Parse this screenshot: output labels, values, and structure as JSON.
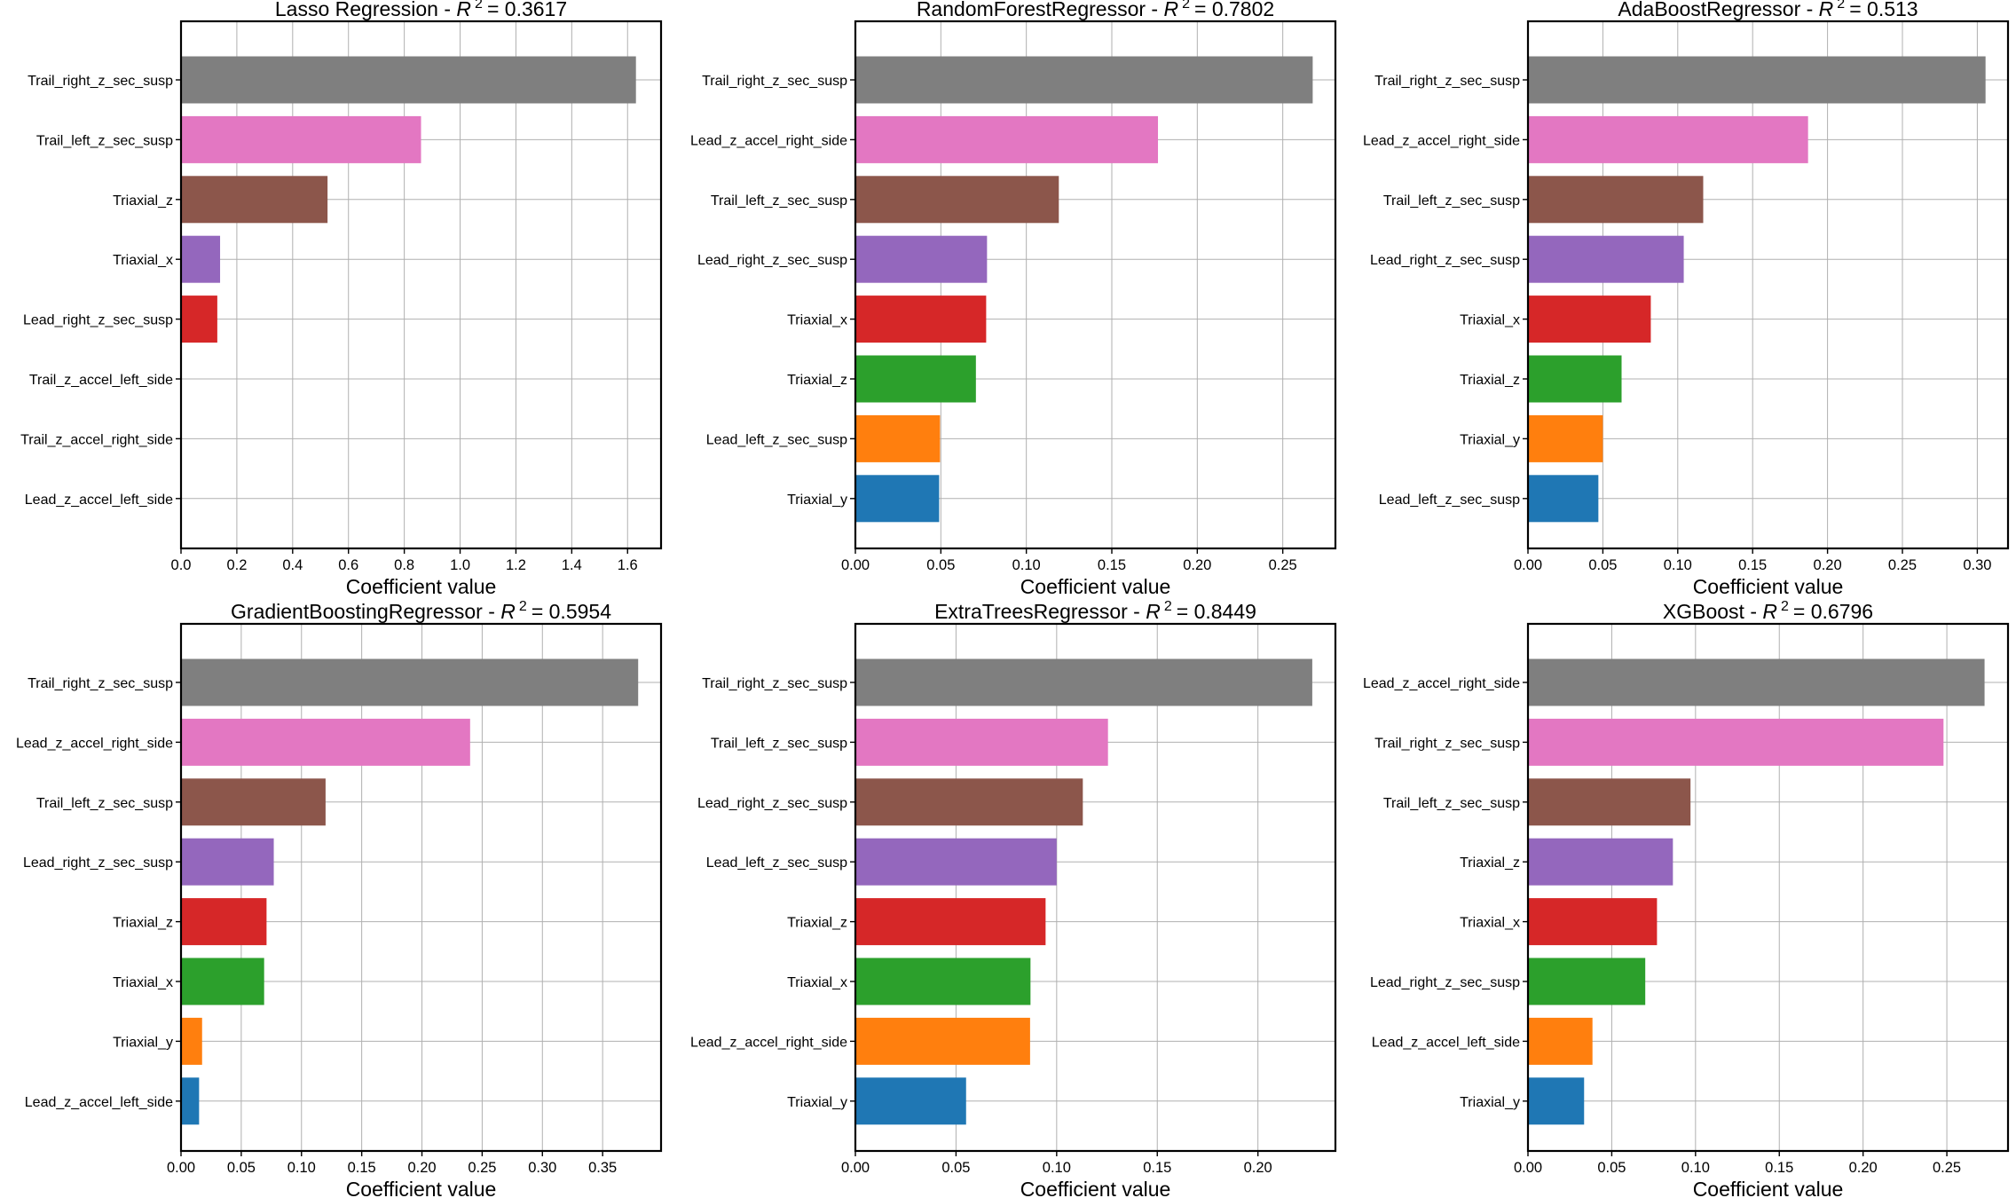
{
  "chart_data": [
    {
      "type": "bar",
      "orientation": "horizontal",
      "title_prefix": "Lasso Regression - ",
      "r2_symbol": "R",
      "r2_exponent": "2",
      "r2_value": "= 0.3617",
      "xlabel": "Coefficient value",
      "xlim": [
        0,
        1.72
      ],
      "xticks": [
        0,
        0.2,
        0.4,
        0.6,
        0.8,
        1.0,
        1.2,
        1.4,
        1.6
      ],
      "xtick_labels": [
        "0.0",
        "0.2",
        "0.4",
        "0.6",
        "0.8",
        "1.0",
        "1.2",
        "1.4",
        "1.6"
      ],
      "grid": true,
      "bars": [
        {
          "label": "Trail_right_z_sec_susp",
          "value": 1.63,
          "color": "#7f7f7f"
        },
        {
          "label": "Trail_left_z_sec_susp",
          "value": 0.86,
          "color": "#e377c2"
        },
        {
          "label": "Triaxial_z",
          "value": 0.525,
          "color": "#8c564b"
        },
        {
          "label": "Triaxial_x",
          "value": 0.14,
          "color": "#9467bd"
        },
        {
          "label": "Lead_right_z_sec_susp",
          "value": 0.13,
          "color": "#d62728"
        },
        {
          "label": "Trail_z_accel_left_side",
          "value": 0,
          "color": "#2ca02c"
        },
        {
          "label": "Trail_z_accel_right_side",
          "value": 0,
          "color": "#ff7f0e"
        },
        {
          "label": "Lead_z_accel_left_side",
          "value": 0,
          "color": "#1f77b4"
        }
      ]
    },
    {
      "type": "bar",
      "orientation": "horizontal",
      "title_prefix": "RandomForestRegressor - ",
      "r2_symbol": "R",
      "r2_exponent": "2",
      "r2_value": "= 0.7802",
      "xlabel": "Coefficient value",
      "xlim": [
        0,
        0.2808
      ],
      "xticks": [
        0,
        0.05,
        0.1,
        0.15,
        0.2,
        0.25
      ],
      "xtick_labels": [
        "0.00",
        "0.05",
        "0.10",
        "0.15",
        "0.20",
        "0.25"
      ],
      "grid": true,
      "bars": [
        {
          "label": "Trail_right_z_sec_susp",
          "value": 0.2675,
          "color": "#7f7f7f"
        },
        {
          "label": "Lead_z_accel_right_side",
          "value": 0.177,
          "color": "#e377c2"
        },
        {
          "label": "Trail_left_z_sec_susp",
          "value": 0.119,
          "color": "#8c564b"
        },
        {
          "label": "Lead_right_z_sec_susp",
          "value": 0.077,
          "color": "#9467bd"
        },
        {
          "label": "Triaxial_x",
          "value": 0.0765,
          "color": "#d62728"
        },
        {
          "label": "Triaxial_z",
          "value": 0.0705,
          "color": "#2ca02c"
        },
        {
          "label": "Lead_left_z_sec_susp",
          "value": 0.0495,
          "color": "#ff7f0e"
        },
        {
          "label": "Triaxial_y",
          "value": 0.049,
          "color": "#1f77b4"
        }
      ]
    },
    {
      "type": "bar",
      "orientation": "horizontal",
      "title_prefix": "AdaBoostRegressor - ",
      "r2_symbol": "R",
      "r2_exponent": "2",
      "r2_value": "= 0.513",
      "xlabel": "Coefficient value",
      "xlim": [
        0,
        0.3205
      ],
      "xticks": [
        0,
        0.05,
        0.1,
        0.15,
        0.2,
        0.25,
        0.3
      ],
      "xtick_labels": [
        "0.00",
        "0.05",
        "0.10",
        "0.15",
        "0.20",
        "0.25",
        "0.30"
      ],
      "grid": true,
      "bars": [
        {
          "label": "Trail_right_z_sec_susp",
          "value": 0.3055,
          "color": "#7f7f7f"
        },
        {
          "label": "Lead_z_accel_right_side",
          "value": 0.187,
          "color": "#e377c2"
        },
        {
          "label": "Trail_left_z_sec_susp",
          "value": 0.117,
          "color": "#8c564b"
        },
        {
          "label": "Lead_right_z_sec_susp",
          "value": 0.104,
          "color": "#9467bd"
        },
        {
          "label": "Triaxial_x",
          "value": 0.082,
          "color": "#d62728"
        },
        {
          "label": "Triaxial_z",
          "value": 0.0625,
          "color": "#2ca02c"
        },
        {
          "label": "Triaxial_y",
          "value": 0.05,
          "color": "#ff7f0e"
        },
        {
          "label": "Lead_left_z_sec_susp",
          "value": 0.047,
          "color": "#1f77b4"
        }
      ]
    },
    {
      "type": "bar",
      "orientation": "horizontal",
      "title_prefix": "GradientBoostingRegressor - ",
      "r2_symbol": "R",
      "r2_exponent": "2",
      "r2_value": "= 0.5954",
      "xlabel": "Coefficient value",
      "xlim": [
        0,
        0.3985
      ],
      "xticks": [
        0,
        0.05,
        0.1,
        0.15,
        0.2,
        0.25,
        0.3,
        0.35
      ],
      "xtick_labels": [
        "0.00",
        "0.05",
        "0.10",
        "0.15",
        "0.20",
        "0.25",
        "0.30",
        "0.35"
      ],
      "grid": true,
      "bars": [
        {
          "label": "Trail_right_z_sec_susp",
          "value": 0.3795,
          "color": "#7f7f7f"
        },
        {
          "label": "Lead_z_accel_right_side",
          "value": 0.24,
          "color": "#e377c2"
        },
        {
          "label": "Trail_left_z_sec_susp",
          "value": 0.12,
          "color": "#8c564b"
        },
        {
          "label": "Lead_right_z_sec_susp",
          "value": 0.077,
          "color": "#9467bd"
        },
        {
          "label": "Triaxial_z",
          "value": 0.071,
          "color": "#d62728"
        },
        {
          "label": "Triaxial_x",
          "value": 0.069,
          "color": "#2ca02c"
        },
        {
          "label": "Triaxial_y",
          "value": 0.0175,
          "color": "#ff7f0e"
        },
        {
          "label": "Lead_z_accel_left_side",
          "value": 0.015,
          "color": "#1f77b4"
        }
      ]
    },
    {
      "type": "bar",
      "orientation": "horizontal",
      "title_prefix": "ExtraTreesRegressor - ",
      "r2_symbol": "R",
      "r2_exponent": "2",
      "r2_value": "= 0.8449",
      "xlabel": "Coefficient value",
      "xlim": [
        0,
        0.2385
      ],
      "xticks": [
        0,
        0.05,
        0.1,
        0.15,
        0.2
      ],
      "xtick_labels": [
        "0.00",
        "0.05",
        "0.10",
        "0.15",
        "0.20"
      ],
      "grid": true,
      "bars": [
        {
          "label": "Trail_right_z_sec_susp",
          "value": 0.227,
          "color": "#7f7f7f"
        },
        {
          "label": "Trail_left_z_sec_susp",
          "value": 0.1255,
          "color": "#e377c2"
        },
        {
          "label": "Lead_right_z_sec_susp",
          "value": 0.113,
          "color": "#8c564b"
        },
        {
          "label": "Lead_left_z_sec_susp",
          "value": 0.1,
          "color": "#9467bd"
        },
        {
          "label": "Triaxial_z",
          "value": 0.0945,
          "color": "#d62728"
        },
        {
          "label": "Triaxial_x",
          "value": 0.087,
          "color": "#2ca02c"
        },
        {
          "label": "Lead_z_accel_right_side",
          "value": 0.0868,
          "color": "#ff7f0e"
        },
        {
          "label": "Triaxial_y",
          "value": 0.055,
          "color": "#1f77b4"
        }
      ]
    },
    {
      "type": "bar",
      "orientation": "horizontal",
      "title_prefix": "XGBoost - ",
      "r2_symbol": "R",
      "r2_exponent": "2",
      "r2_value": "= 0.6796",
      "xlabel": "Coefficient value",
      "xlim": [
        0,
        0.2865
      ],
      "xticks": [
        0,
        0.05,
        0.1,
        0.15,
        0.2,
        0.25
      ],
      "xtick_labels": [
        "0.00",
        "0.05",
        "0.10",
        "0.15",
        "0.20",
        "0.25"
      ],
      "grid": true,
      "bars": [
        {
          "label": "Lead_z_accel_right_side",
          "value": 0.2725,
          "color": "#7f7f7f"
        },
        {
          "label": "Trail_right_z_sec_susp",
          "value": 0.248,
          "color": "#e377c2"
        },
        {
          "label": "Trail_left_z_sec_susp",
          "value": 0.097,
          "color": "#8c564b"
        },
        {
          "label": "Triaxial_z",
          "value": 0.0865,
          "color": "#9467bd"
        },
        {
          "label": "Triaxial_x",
          "value": 0.077,
          "color": "#d62728"
        },
        {
          "label": "Lead_right_z_sec_susp",
          "value": 0.07,
          "color": "#2ca02c"
        },
        {
          "label": "Lead_z_accel_left_side",
          "value": 0.0385,
          "color": "#ff7f0e"
        },
        {
          "label": "Triaxial_y",
          "value": 0.0335,
          "color": "#1f77b4"
        }
      ]
    }
  ]
}
